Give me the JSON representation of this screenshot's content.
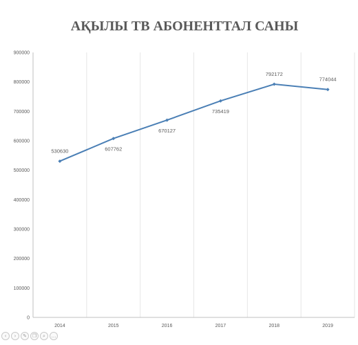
{
  "chart_data": {
    "type": "line",
    "title": "АҚЫЛЫ ТВ АБОНЕНТТАЛ САНЫ",
    "xlabel": "",
    "ylabel": "",
    "categories": [
      "2014",
      "2015",
      "2016",
      "2017",
      "2018",
      "2019"
    ],
    "series": [
      {
        "values": [
          530630,
          607762,
          670127,
          735419,
          792172,
          774044
        ]
      }
    ],
    "data_labels": [
      "530630",
      "607762",
      "670127",
      "735419",
      "792172",
      "774044"
    ],
    "ylim": [
      0,
      900000
    ],
    "yticks": [
      0,
      100000,
      200000,
      300000,
      400000,
      500000,
      600000,
      700000,
      800000,
      900000
    ],
    "ytick_labels": [
      "0",
      "100000",
      "200000",
      "300000",
      "400000",
      "500000",
      "600000",
      "700000",
      "800000",
      "900000"
    ],
    "grid": "vertical",
    "legend": "none",
    "colors": {
      "series": "#4a7fb5",
      "text": "#595959",
      "grid": "#e6e6e6"
    }
  },
  "toolbar": {
    "icons": [
      "prev-icon",
      "next-icon",
      "pen-icon",
      "copy-icon",
      "search-icon",
      "more-icon"
    ]
  }
}
